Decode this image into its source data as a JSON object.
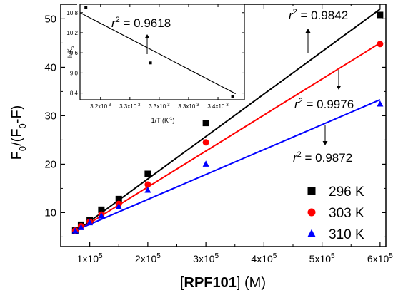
{
  "chart_data": [
    {
      "type": "scatter",
      "xlabel_bold": "RPF101",
      "xlabel_rest": " (M)",
      "ylabel_main": "F",
      "ylabel_sub1": "0",
      "ylabel_mid": "/(F",
      "ylabel_sub2": "0",
      "ylabel_end": "-F)",
      "xlim": [
        50000,
        610000
      ],
      "ylim": [
        3,
        53
      ],
      "x_ticks": [
        {
          "value": 100000,
          "mant": "1x10",
          "exp": "5"
        },
        {
          "value": 200000,
          "mant": "2x10",
          "exp": "5"
        },
        {
          "value": 300000,
          "mant": "3x10",
          "exp": "5"
        },
        {
          "value": 400000,
          "mant": "4x10",
          "exp": "5"
        },
        {
          "value": 500000,
          "mant": "5x10",
          "exp": "5"
        },
        {
          "value": 600000,
          "mant": "6x10",
          "exp": "5"
        }
      ],
      "y_ticks": [
        {
          "value": 10,
          "label": "10"
        },
        {
          "value": 20,
          "label": "20"
        },
        {
          "value": 30,
          "label": "30"
        },
        {
          "value": 40,
          "label": "40"
        },
        {
          "value": 50,
          "label": "50"
        }
      ],
      "series": [
        {
          "name": "296 K",
          "marker": "square",
          "color": "#000000",
          "x": [
            75000,
            85000,
            100000,
            120000,
            150000,
            200000,
            300000,
            600000
          ],
          "y": [
            6.3,
            7.5,
            8.5,
            10.6,
            12.8,
            18.0,
            28.5,
            50.8
          ],
          "fit": {
            "x": [
              75000,
              600000
            ],
            "y": [
              6.0,
              52.0
            ]
          },
          "r2_label": "r",
          "r2_exp": "2",
          "r2_value": " = 0.9842"
        },
        {
          "name": "303 K",
          "marker": "circle",
          "color": "#ff0000",
          "x": [
            75000,
            85000,
            100000,
            120000,
            150000,
            200000,
            300000,
            600000
          ],
          "y": [
            6.3,
            7.2,
            8.1,
            9.6,
            11.8,
            15.8,
            24.5,
            44.8
          ],
          "fit": {
            "x": [
              75000,
              600000
            ],
            "y": [
              6.0,
              45.0
            ]
          },
          "r2_label": "r",
          "r2_exp": "2",
          "r2_value": " = 0.9976"
        },
        {
          "name": "310 K",
          "marker": "triangle",
          "color": "#0000ff",
          "x": [
            75000,
            85000,
            100000,
            120000,
            150000,
            200000,
            300000,
            600000
          ],
          "y": [
            6.2,
            6.9,
            7.9,
            9.3,
            11.2,
            14.6,
            20.0,
            32.4
          ],
          "fit": {
            "x": [
              75000,
              600000
            ],
            "y": [
              6.3,
              33.3
            ]
          },
          "r2_label": "r",
          "r2_exp": "2",
          "r2_value": " = 0.9872"
        }
      ],
      "legend_placement": "bottom-right"
    },
    {
      "type": "scatter",
      "xlabel": "1/T (K",
      "xlabel_exp": "-1",
      "xlabel_end": ")",
      "ylabel_main": "lnK",
      "ylabel_sub": "a",
      "xlim": [
        0.003165,
        0.003445
      ],
      "ylim": [
        8.2,
        11.05
      ],
      "x_ticks": [
        {
          "value": 0.0032,
          "mant": "3.2x10",
          "exp": "-3"
        },
        {
          "value": 0.00325,
          "mant": "3.3x10",
          "exp": "-3"
        },
        {
          "value": 0.0033,
          "mant": "3.3x10",
          "exp": "-3"
        },
        {
          "value": 0.00335,
          "mant": "3.3x10",
          "exp": "-3"
        },
        {
          "value": 0.0034,
          "mant": "3.4x10",
          "exp": "-3"
        }
      ],
      "y_ticks": [
        {
          "value": 8.4,
          "label": "8.4"
        },
        {
          "value": 9.0,
          "label": "9.0"
        },
        {
          "value": 9.6,
          "label": "9.6"
        },
        {
          "value": 10.2,
          "label": "10.2"
        },
        {
          "value": 10.8,
          "label": "10.8"
        }
      ],
      "points": {
        "x": [
          0.003175,
          0.003285,
          0.003425
        ],
        "y": [
          10.95,
          9.3,
          8.3
        ]
      },
      "fit": {
        "x": [
          0.003165,
          0.00343
        ],
        "y": [
          10.8,
          8.38
        ]
      },
      "r2_label": "r",
      "r2_exp": "2",
      "r2_value": " = 0.9618"
    }
  ]
}
